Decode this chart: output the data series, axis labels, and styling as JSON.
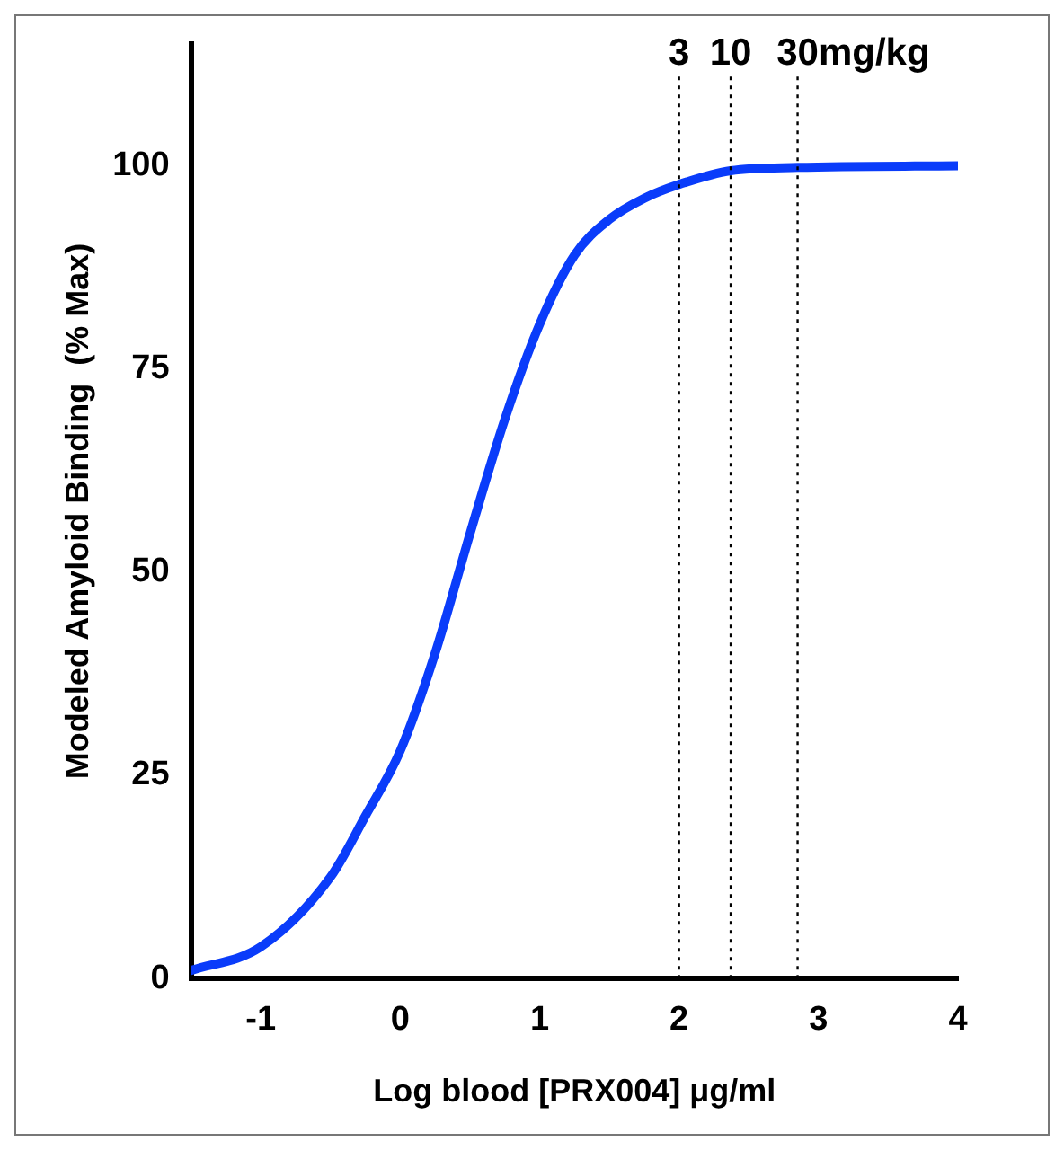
{
  "chart_data": {
    "type": "line",
    "xlabel": "Log blood [PRX004] μg/ml",
    "ylabel": "Modeled Amyloid Binding  (% Max)",
    "x": [
      -1.5,
      -1,
      -0.5,
      -0.25,
      0,
      0.25,
      0.5,
      0.75,
      1,
      1.25,
      1.5,
      1.75,
      2,
      2.37,
      2.85,
      4
    ],
    "series": [
      {
        "color": "#0a3cfa",
        "values": [
          1,
          3.9,
          12.5,
          20,
          28,
          40,
          54.7,
          68.8,
          80.5,
          89,
          93.4,
          96,
          97.7,
          99.4,
          99.8,
          100
        ]
      }
    ],
    "xlim": [
      -1.5,
      4
    ],
    "xticks": [
      -1,
      0,
      1,
      2,
      3,
      4
    ],
    "ylim": [
      0,
      115
    ],
    "yticks": [
      0,
      25,
      50,
      75,
      100
    ],
    "ref_lines": [
      {
        "axis": "x",
        "value": 2,
        "line_style": "dotted"
      },
      {
        "axis": "x",
        "value": 2.37,
        "line_style": "dotted"
      },
      {
        "axis": "x",
        "value": 2.85,
        "line_style": "dotted"
      }
    ],
    "annotations": [
      {
        "text": "3",
        "x": 2,
        "y": 111
      },
      {
        "text": "10",
        "x": 2.37,
        "y": 111
      },
      {
        "text": "30mg/kg",
        "x": 2.85,
        "y": 111
      }
    ],
    "grid": false,
    "legend": false,
    "marker": "none",
    "line_style": "solid"
  }
}
